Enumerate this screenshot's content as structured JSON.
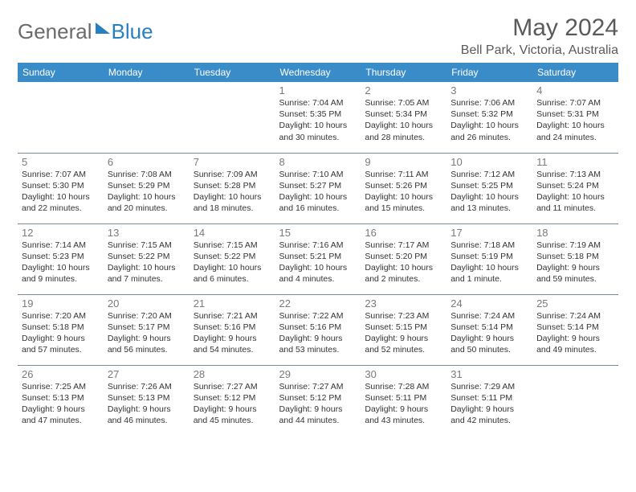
{
  "brand": {
    "part1": "General",
    "part2": "Blue"
  },
  "title": "May 2024",
  "location": "Bell Park, Victoria, Australia",
  "header_bg": "#3a8cc9",
  "header_fg": "#ffffff",
  "border_color": "#7b8a99",
  "dayname_fontsize": 12,
  "daynum_color": "#7a7a7a",
  "cell_fontsize": 10.5,
  "day_names": [
    "Sunday",
    "Monday",
    "Tuesday",
    "Wednesday",
    "Thursday",
    "Friday",
    "Saturday"
  ],
  "weeks": [
    [
      null,
      null,
      null,
      {
        "n": "1",
        "sunrise": "7:04 AM",
        "sunset": "5:35 PM",
        "daylight": "10 hours and 30 minutes."
      },
      {
        "n": "2",
        "sunrise": "7:05 AM",
        "sunset": "5:34 PM",
        "daylight": "10 hours and 28 minutes."
      },
      {
        "n": "3",
        "sunrise": "7:06 AM",
        "sunset": "5:32 PM",
        "daylight": "10 hours and 26 minutes."
      },
      {
        "n": "4",
        "sunrise": "7:07 AM",
        "sunset": "5:31 PM",
        "daylight": "10 hours and 24 minutes."
      }
    ],
    [
      {
        "n": "5",
        "sunrise": "7:07 AM",
        "sunset": "5:30 PM",
        "daylight": "10 hours and 22 minutes."
      },
      {
        "n": "6",
        "sunrise": "7:08 AM",
        "sunset": "5:29 PM",
        "daylight": "10 hours and 20 minutes."
      },
      {
        "n": "7",
        "sunrise": "7:09 AM",
        "sunset": "5:28 PM",
        "daylight": "10 hours and 18 minutes."
      },
      {
        "n": "8",
        "sunrise": "7:10 AM",
        "sunset": "5:27 PM",
        "daylight": "10 hours and 16 minutes."
      },
      {
        "n": "9",
        "sunrise": "7:11 AM",
        "sunset": "5:26 PM",
        "daylight": "10 hours and 15 minutes."
      },
      {
        "n": "10",
        "sunrise": "7:12 AM",
        "sunset": "5:25 PM",
        "daylight": "10 hours and 13 minutes."
      },
      {
        "n": "11",
        "sunrise": "7:13 AM",
        "sunset": "5:24 PM",
        "daylight": "10 hours and 11 minutes."
      }
    ],
    [
      {
        "n": "12",
        "sunrise": "7:14 AM",
        "sunset": "5:23 PM",
        "daylight": "10 hours and 9 minutes."
      },
      {
        "n": "13",
        "sunrise": "7:15 AM",
        "sunset": "5:22 PM",
        "daylight": "10 hours and 7 minutes."
      },
      {
        "n": "14",
        "sunrise": "7:15 AM",
        "sunset": "5:22 PM",
        "daylight": "10 hours and 6 minutes."
      },
      {
        "n": "15",
        "sunrise": "7:16 AM",
        "sunset": "5:21 PM",
        "daylight": "10 hours and 4 minutes."
      },
      {
        "n": "16",
        "sunrise": "7:17 AM",
        "sunset": "5:20 PM",
        "daylight": "10 hours and 2 minutes."
      },
      {
        "n": "17",
        "sunrise": "7:18 AM",
        "sunset": "5:19 PM",
        "daylight": "10 hours and 1 minute."
      },
      {
        "n": "18",
        "sunrise": "7:19 AM",
        "sunset": "5:18 PM",
        "daylight": "9 hours and 59 minutes."
      }
    ],
    [
      {
        "n": "19",
        "sunrise": "7:20 AM",
        "sunset": "5:18 PM",
        "daylight": "9 hours and 57 minutes."
      },
      {
        "n": "20",
        "sunrise": "7:20 AM",
        "sunset": "5:17 PM",
        "daylight": "9 hours and 56 minutes."
      },
      {
        "n": "21",
        "sunrise": "7:21 AM",
        "sunset": "5:16 PM",
        "daylight": "9 hours and 54 minutes."
      },
      {
        "n": "22",
        "sunrise": "7:22 AM",
        "sunset": "5:16 PM",
        "daylight": "9 hours and 53 minutes."
      },
      {
        "n": "23",
        "sunrise": "7:23 AM",
        "sunset": "5:15 PM",
        "daylight": "9 hours and 52 minutes."
      },
      {
        "n": "24",
        "sunrise": "7:24 AM",
        "sunset": "5:14 PM",
        "daylight": "9 hours and 50 minutes."
      },
      {
        "n": "25",
        "sunrise": "7:24 AM",
        "sunset": "5:14 PM",
        "daylight": "9 hours and 49 minutes."
      }
    ],
    [
      {
        "n": "26",
        "sunrise": "7:25 AM",
        "sunset": "5:13 PM",
        "daylight": "9 hours and 47 minutes."
      },
      {
        "n": "27",
        "sunrise": "7:26 AM",
        "sunset": "5:13 PM",
        "daylight": "9 hours and 46 minutes."
      },
      {
        "n": "28",
        "sunrise": "7:27 AM",
        "sunset": "5:12 PM",
        "daylight": "9 hours and 45 minutes."
      },
      {
        "n": "29",
        "sunrise": "7:27 AM",
        "sunset": "5:12 PM",
        "daylight": "9 hours and 44 minutes."
      },
      {
        "n": "30",
        "sunrise": "7:28 AM",
        "sunset": "5:11 PM",
        "daylight": "9 hours and 43 minutes."
      },
      {
        "n": "31",
        "sunrise": "7:29 AM",
        "sunset": "5:11 PM",
        "daylight": "9 hours and 42 minutes."
      },
      null
    ]
  ],
  "labels": {
    "sunrise": "Sunrise:",
    "sunset": "Sunset:",
    "daylight": "Daylight:"
  }
}
